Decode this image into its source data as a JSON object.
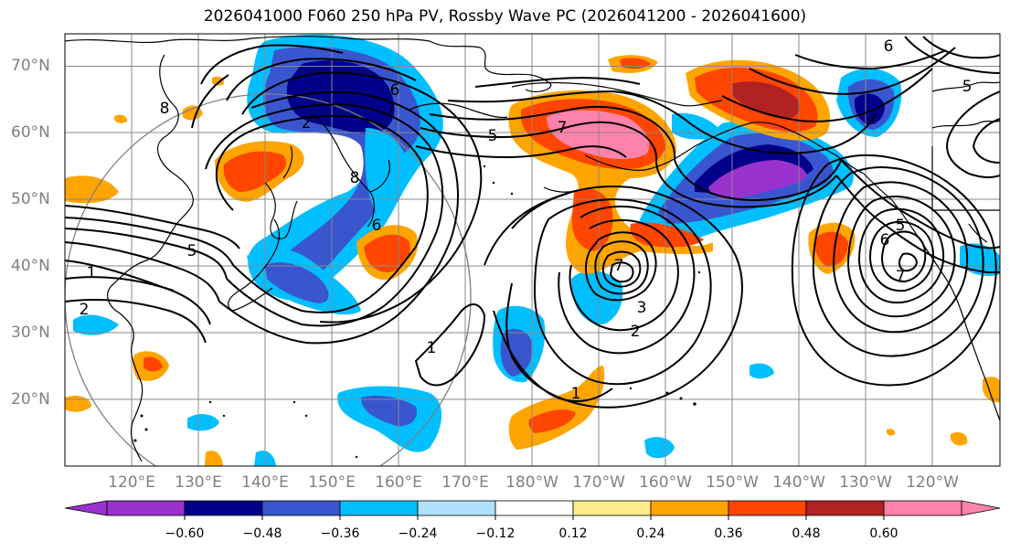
{
  "title": "2026041000 F060 250 hPa PV, Rossby Wave PC (2026041200 - 2026041600)",
  "lat_labels": [
    "70°N",
    "60°N",
    "50°N",
    "40°N",
    "30°N",
    "20°N"
  ],
  "lon_labels": [
    "120°E",
    "130°E",
    "140°E",
    "150°E",
    "160°E",
    "170°E",
    "180°W",
    "170°W",
    "160°W",
    "150°W",
    "140°W",
    "130°W",
    "120°W"
  ],
  "contour_labels": [
    "1",
    "2",
    "5",
    "6",
    "7",
    "8",
    "2",
    "5",
    "6",
    "8",
    "7",
    "7",
    "3",
    "2",
    "1",
    "1",
    "5",
    "6",
    "7",
    "5",
    "6"
  ],
  "colorbar": {
    "ticks": [
      "−0.60",
      "−0.48",
      "−0.36",
      "−0.24",
      "−0.12",
      "0.12",
      "0.24",
      "0.36",
      "0.48",
      "0.60"
    ],
    "colors": [
      "#9932cc",
      "#00008b",
      "#3a56cf",
      "#00bfff",
      "#b0e2ff",
      "#ffffff",
      "#ffeb8a",
      "#ffa500",
      "#ff4500",
      "#b22222",
      "#ff82ab"
    ]
  },
  "colors": {
    "neg_strong": "#9932cc",
    "neg_dark": "#00008b",
    "neg_mid": "#3a56cf",
    "neg_light": "#00bfff",
    "neg_pale": "#b0e2ff",
    "pos_pale": "#ffeb8a",
    "pos_light": "#ffa500",
    "pos_mid": "#ff4500",
    "pos_dark": "#b22222",
    "pos_strong": "#ff82ab"
  }
}
